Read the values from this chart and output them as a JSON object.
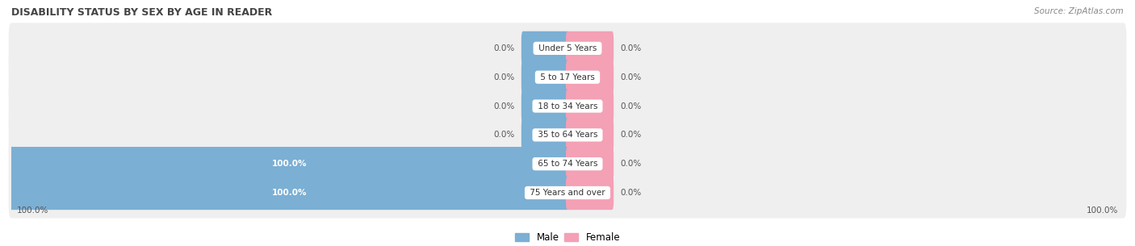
{
  "title": "DISABILITY STATUS BY SEX BY AGE IN READER",
  "source": "Source: ZipAtlas.com",
  "categories": [
    "Under 5 Years",
    "5 to 17 Years",
    "18 to 34 Years",
    "35 to 64 Years",
    "65 to 74 Years",
    "75 Years and over"
  ],
  "male_values": [
    0.0,
    0.0,
    0.0,
    0.0,
    100.0,
    100.0
  ],
  "female_values": [
    0.0,
    0.0,
    0.0,
    0.0,
    0.0,
    0.0
  ],
  "male_color": "#7bafd4",
  "female_color": "#f4a0b5",
  "row_bg_color": "#efefef",
  "row_bg_alt": "#e4e4e4",
  "title_color": "#444444",
  "value_color_inside": "#ffffff",
  "value_color_outside": "#555555",
  "figsize": [
    14.06,
    3.05
  ],
  "dpi": 100,
  "stub_size": 8.0,
  "xlim_left": -100,
  "xlim_right": 100
}
